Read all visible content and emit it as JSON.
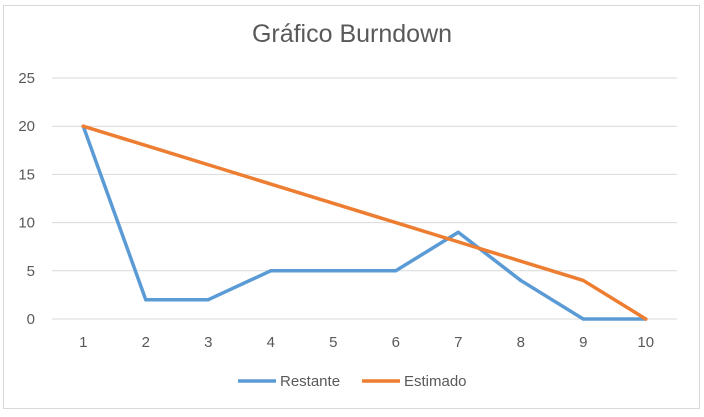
{
  "chart_data": {
    "type": "line",
    "title": "Gráfico Burndown",
    "x": [
      "1",
      "2",
      "3",
      "4",
      "5",
      "6",
      "7",
      "8",
      "9",
      "10"
    ],
    "ylim": [
      0,
      25
    ],
    "yticks": [
      "0",
      "5",
      "10",
      "15",
      "20",
      "25"
    ],
    "grid": true,
    "legend_position": "bottom",
    "series": [
      {
        "name": "Restante",
        "color": "#5b9bd5",
        "values": [
          20,
          2,
          2,
          5,
          5,
          5,
          9,
          4,
          0,
          0
        ]
      },
      {
        "name": "Estimado",
        "color": "#ed7d31",
        "values": [
          20,
          18,
          16,
          14,
          12,
          10,
          8,
          6,
          4,
          0
        ]
      }
    ]
  }
}
